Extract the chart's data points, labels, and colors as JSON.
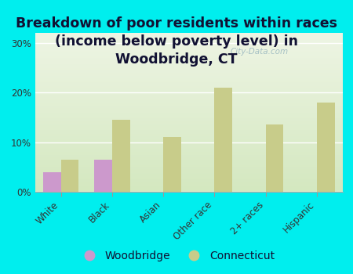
{
  "title": "Breakdown of poor residents within races\n(income below poverty level) in\nWoodbridge, CT",
  "categories": [
    "White",
    "Black",
    "Asian",
    "Other race",
    "2+ races",
    "Hispanic"
  ],
  "woodbridge_values": [
    4.0,
    6.5,
    0.0,
    0.0,
    0.0,
    0.0
  ],
  "connecticut_values": [
    6.5,
    14.5,
    11.0,
    21.0,
    13.5,
    18.0
  ],
  "woodbridge_color": "#cc99cc",
  "connecticut_color": "#c8cc8a",
  "background_outer": "#00eeee",
  "background_plot_bottom": "#d4e8c0",
  "background_plot_top": "#eef5e4",
  "ylim": [
    0,
    32
  ],
  "yticks": [
    0,
    10,
    20,
    30
  ],
  "ytick_labels": [
    "0%",
    "10%",
    "20%",
    "30%"
  ],
  "title_fontsize": 12.5,
  "tick_label_fontsize": 8.5,
  "legend_fontsize": 10,
  "title_color": "#111133",
  "watermark": "City-Data.com"
}
